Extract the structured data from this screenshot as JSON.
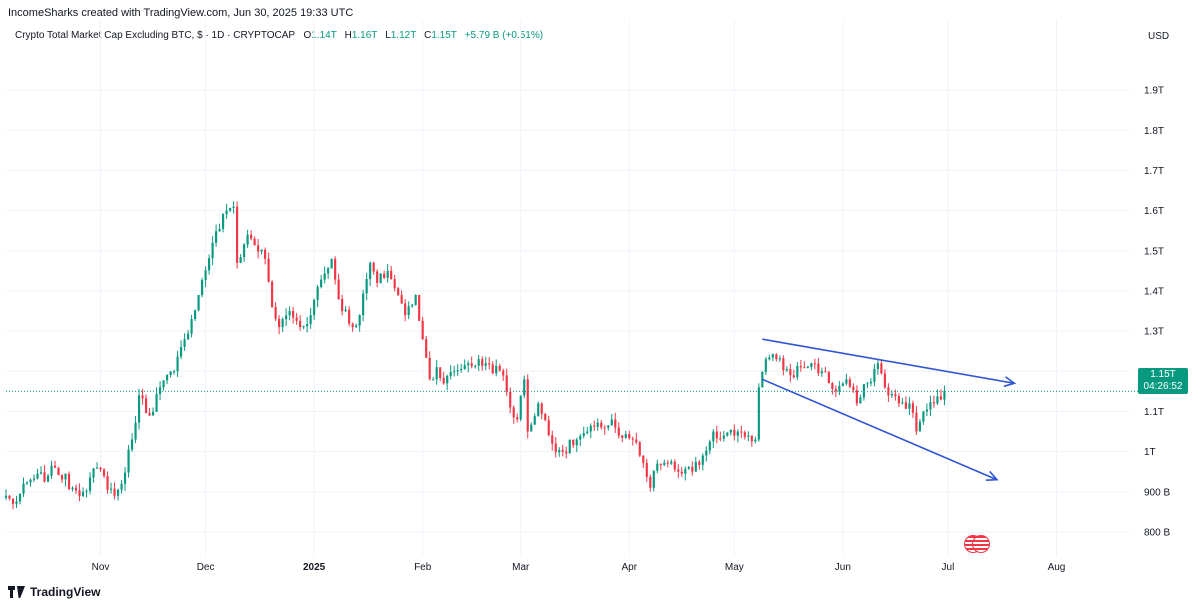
{
  "header": {
    "attribution": "IncomeSharks created with TradingView.com, Jun 30, 2025 19:33 UTC"
  },
  "legend": {
    "symbol": "Crypto Total Market Cap Excluding BTC, $ · 1D · CRYPTOCAP",
    "open_label": "O",
    "open": "1.14T",
    "high_label": "H",
    "high": "1.16T",
    "low_label": "L",
    "low": "1.12T",
    "close_label": "C",
    "close": "1.15T",
    "change": "+5.79 B (+0.51%)"
  },
  "axis": {
    "currency": "USD"
  },
  "price_tag": {
    "price": "1.15T",
    "countdown": "04:26:52"
  },
  "footer": {
    "brand": "TradingView"
  },
  "colors": {
    "up": "#089981",
    "down": "#f23645",
    "pattern": "#3056d3",
    "grid": "#f0f3fa"
  },
  "chart_data": {
    "type": "candlestick",
    "y_axis": {
      "unit": "USD",
      "scale": "linear",
      "range": [
        750000000000,
        2000000000000
      ],
      "tick_values": [
        800000000000,
        900000000000,
        1000000000000,
        1100000000000,
        1200000000000,
        1300000000000,
        1400000000000,
        1500000000000,
        1600000000000,
        1700000000000,
        1800000000000,
        1900000000000
      ],
      "tick_labels": [
        "800 B",
        "900 B",
        "1T",
        "1.1T",
        "1.2T",
        "1.3T",
        "1.4T",
        "1.5T",
        "1.6T",
        "1.7T",
        "1.8T",
        "1.9T"
      ]
    },
    "x_axis": {
      "range": [
        "2024-10-05",
        "2025-08-22"
      ],
      "ticks": [
        {
          "date": "2024-11-01",
          "label": "Nov"
        },
        {
          "date": "2024-12-01",
          "label": "Dec"
        },
        {
          "date": "2025-01-01",
          "label": "2025"
        },
        {
          "date": "2025-02-01",
          "label": "Feb"
        },
        {
          "date": "2025-03-01",
          "label": "Mar"
        },
        {
          "date": "2025-04-01",
          "label": "Apr"
        },
        {
          "date": "2025-05-01",
          "label": "May"
        },
        {
          "date": "2025-06-01",
          "label": "Jun"
        },
        {
          "date": "2025-07-01",
          "label": "Jul"
        },
        {
          "date": "2025-08-01",
          "label": "Aug"
        }
      ]
    },
    "grid": true,
    "last_close": 1150000000000,
    "anchors": [
      [
        "2024-10-05",
        0.89
      ],
      [
        "2024-10-07",
        0.87
      ],
      [
        "2024-10-12",
        0.93
      ],
      [
        "2024-10-17",
        0.94
      ],
      [
        "2024-10-19",
        0.96
      ],
      [
        "2024-10-24",
        0.91
      ],
      [
        "2024-10-27",
        0.9
      ],
      [
        "2024-10-31",
        0.96
      ],
      [
        "2024-11-05",
        0.89
      ],
      [
        "2024-11-07",
        0.92
      ],
      [
        "2024-11-10",
        1.03
      ],
      [
        "2024-11-12",
        1.14
      ],
      [
        "2024-11-15",
        1.09
      ],
      [
        "2024-11-18",
        1.16
      ],
      [
        "2024-11-22",
        1.2
      ],
      [
        "2024-11-25",
        1.28
      ],
      [
        "2024-11-29",
        1.39
      ],
      [
        "2024-12-03",
        1.52
      ],
      [
        "2024-12-07",
        1.6
      ],
      [
        "2024-12-09",
        1.61
      ],
      [
        "2024-12-10",
        1.47
      ],
      [
        "2024-12-13",
        1.54
      ],
      [
        "2024-12-18",
        1.48
      ],
      [
        "2024-12-20",
        1.36
      ],
      [
        "2024-12-22",
        1.31
      ],
      [
        "2024-12-25",
        1.35
      ],
      [
        "2024-12-28",
        1.31
      ],
      [
        "2024-12-31",
        1.34
      ],
      [
        "2025-01-02",
        1.41
      ],
      [
        "2025-01-06",
        1.48
      ],
      [
        "2025-01-08",
        1.38
      ],
      [
        "2025-01-12",
        1.31
      ],
      [
        "2025-01-14",
        1.34
      ],
      [
        "2025-01-17",
        1.47
      ],
      [
        "2025-01-19",
        1.42
      ],
      [
        "2025-01-22",
        1.45
      ],
      [
        "2025-01-25",
        1.39
      ],
      [
        "2025-01-27",
        1.34
      ],
      [
        "2025-01-30",
        1.39
      ],
      [
        "2025-02-01",
        1.28
      ],
      [
        "2025-02-03",
        1.18
      ],
      [
        "2025-02-05",
        1.21
      ],
      [
        "2025-02-07",
        1.17
      ],
      [
        "2025-02-10",
        1.2
      ],
      [
        "2025-02-14",
        1.22
      ],
      [
        "2025-02-19",
        1.22
      ],
      [
        "2025-02-24",
        1.19
      ],
      [
        "2025-02-26",
        1.11
      ],
      [
        "2025-02-28",
        1.08
      ],
      [
        "2025-03-02",
        1.18
      ],
      [
        "2025-03-03",
        1.05
      ],
      [
        "2025-03-06",
        1.12
      ],
      [
        "2025-03-10",
        1.02
      ],
      [
        "2025-03-13",
        1.0
      ],
      [
        "2025-03-17",
        1.03
      ],
      [
        "2025-03-20",
        1.05
      ],
      [
        "2025-03-24",
        1.06
      ],
      [
        "2025-03-27",
        1.08
      ],
      [
        "2025-03-29",
        1.04
      ],
      [
        "2025-04-02",
        1.03
      ],
      [
        "2025-04-04",
        0.99
      ],
      [
        "2025-04-07",
        0.91
      ],
      [
        "2025-04-09",
        0.97
      ],
      [
        "2025-04-12",
        0.97
      ],
      [
        "2025-04-15",
        0.95
      ],
      [
        "2025-04-19",
        0.95
      ],
      [
        "2025-04-22",
        0.99
      ],
      [
        "2025-04-25",
        1.05
      ],
      [
        "2025-04-28",
        1.04
      ],
      [
        "2025-05-02",
        1.05
      ],
      [
        "2025-05-05",
        1.04
      ],
      [
        "2025-05-07",
        1.03
      ],
      [
        "2025-05-08",
        1.16
      ],
      [
        "2025-05-10",
        1.23
      ],
      [
        "2025-05-13",
        1.23
      ],
      [
        "2025-05-17",
        1.19
      ],
      [
        "2025-05-20",
        1.21
      ],
      [
        "2025-05-23",
        1.22
      ],
      [
        "2025-05-26",
        1.2
      ],
      [
        "2025-05-30",
        1.15
      ],
      [
        "2025-06-02",
        1.18
      ],
      [
        "2025-06-05",
        1.12
      ],
      [
        "2025-06-08",
        1.17
      ],
      [
        "2025-06-11",
        1.22
      ],
      [
        "2025-06-13",
        1.16
      ],
      [
        "2025-06-17",
        1.12
      ],
      [
        "2025-06-20",
        1.12
      ],
      [
        "2025-06-22",
        1.05
      ],
      [
        "2025-06-24",
        1.1
      ],
      [
        "2025-06-27",
        1.12
      ],
      [
        "2025-06-30",
        1.15
      ]
    ],
    "annotations": [
      {
        "type": "trendline",
        "name": "upper-trendline",
        "from": [
          "2025-05-09",
          1.28
        ],
        "to": [
          "2025-07-20",
          1.17
        ],
        "arrow": true,
        "color": "#3056d3"
      },
      {
        "type": "trendline",
        "name": "lower-trendline",
        "from": [
          "2025-05-09",
          1.18
        ],
        "to": [
          "2025-07-15",
          0.93
        ],
        "arrow": true,
        "color": "#3056d3"
      }
    ]
  }
}
